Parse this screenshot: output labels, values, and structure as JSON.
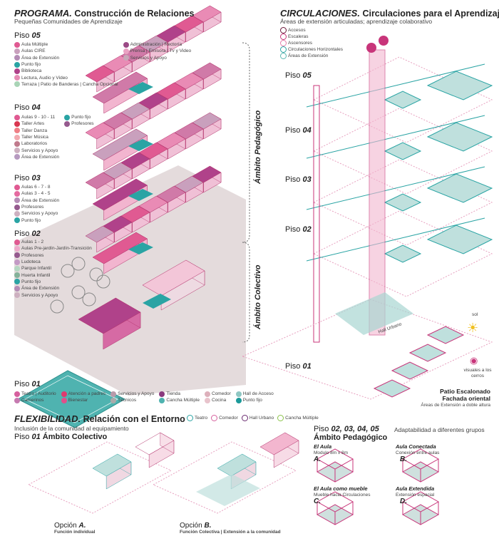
{
  "programa": {
    "title": "PROGRAMA.",
    "subtitle": "Construcción de Relaciones",
    "caption": "Pequeñas Comunidades de Aprendizaje",
    "floors": [
      {
        "label": "Piso",
        "num": "05",
        "items": [
          [
            "Aula Múltiple",
            "#e05a92"
          ],
          [
            "Aulas CIRE",
            "#c9a0bd"
          ],
          [
            "Área de Extensión",
            "#b48cb5"
          ],
          [
            "Punto fijo",
            "#2aa4a4"
          ],
          [
            "Biblioteca",
            "#b0428a"
          ],
          [
            "Lectura, Audio y Video",
            "#e68db5"
          ],
          [
            "Terraza | Patio de Banderas | Cancha Opcional",
            "#a9d4b6"
          ],
          [
            "Administración | Rectoría",
            "#9b4a86"
          ],
          [
            "Prensa | Emisora | Tv y Video",
            "#eaa2c3"
          ],
          [
            "Servicios y Apoyo",
            "#c7a8b8"
          ]
        ]
      },
      {
        "label": "Piso",
        "num": "04",
        "items": [
          [
            "Aulas 9 - 10 - 11",
            "#e05a92"
          ],
          [
            "Taller Artes",
            "#d9364f"
          ],
          [
            "Taller Danza",
            "#ef7f86"
          ],
          [
            "Taller Música",
            "#f2aab0"
          ],
          [
            "Laboratorios",
            "#c07a8c"
          ],
          [
            "Servicios y Apoyo",
            "#cdb0c0"
          ],
          [
            "Área de Extensión",
            "#b79ac0"
          ],
          [
            "Punto fijo",
            "#2aa4a4"
          ],
          [
            "Profesores",
            "#955a8e"
          ]
        ]
      },
      {
        "label": "Piso",
        "num": "03",
        "items": [
          [
            "Aulas 6 - 7 - 8",
            "#e05a92"
          ],
          [
            "Aulas 3 - 4 - 5",
            "#e56aa0"
          ],
          [
            "Área de Extensión",
            "#b48cb5"
          ],
          [
            "Profesores",
            "#955a8e"
          ],
          [
            "Servicios y Apoyo",
            "#cdb0c0"
          ],
          [
            "Punto fijo",
            "#2aa4a4"
          ]
        ]
      },
      {
        "label": "Piso",
        "num": "02",
        "items": [
          [
            "Aulas 1 - 2",
            "#e05a92"
          ],
          [
            "Aulas Pre-jardín-Jardín-Transición",
            "#eeaacb"
          ],
          [
            "Profesores",
            "#955a8e"
          ],
          [
            "Ludoteca",
            "#c39ac5"
          ],
          [
            "Parque Infantil",
            "#b5d8c2"
          ],
          [
            "Huerta Infantil",
            "#86b29a"
          ],
          [
            "Punto fijo",
            "#2aa4a4"
          ],
          [
            "Área de Extensión",
            "#b48cb5"
          ],
          [
            "Servicios y Apoyo",
            "#cdb0c0"
          ]
        ]
      },
      {
        "label": "Piso",
        "num": "01",
        "items": [
          [
            "Teatro | Auditorio",
            "#d6609e"
          ],
          [
            "Camerinos",
            "#c67ab0"
          ],
          [
            "Atención a padres",
            "#e0386f"
          ],
          [
            "Bienestar",
            "#e0508a"
          ],
          [
            "Servicios y Apoyo",
            "#b89aaa"
          ],
          [
            "Técnicos",
            "#aaa"
          ],
          [
            "Tienda",
            "#8a3a7e"
          ],
          [
            "Cancha Múltiple",
            "#4fb3b0"
          ],
          [
            "Comedor",
            "#ddb0bb"
          ],
          [
            "Cocina",
            "#e8c4cc"
          ],
          [
            "Hall de Acceso",
            "#8fc7c3"
          ],
          [
            "Punto fijo",
            "#1b9a9a"
          ]
        ]
      }
    ],
    "ambito_pedagogico": "Ámbito Pedagógico",
    "ambito_colectivo": "Ámbito Colectivo"
  },
  "circulaciones": {
    "title": "CIRCULACIONES.",
    "subtitle": "Circulaciones para el Aprendizaje",
    "caption": "Áreas de extensión articuladas; aprendizaje colaborativo",
    "legend": [
      [
        "Accesos",
        "#6a1538"
      ],
      [
        "Escaleras",
        "#c8357a"
      ],
      [
        "Ascensores",
        "#e47aa7"
      ],
      [
        "Circulaciones Horizontales",
        "#2aa4a4"
      ],
      [
        "Áreas de Extensión",
        "#5bb7b1"
      ]
    ],
    "floors": [
      "05",
      "04",
      "03",
      "02",
      "01"
    ],
    "floor_label": "Piso",
    "hall": "Hall Urbano",
    "sun": "sol",
    "eye": "visuales a los cerros",
    "patio_title1": "Patio Escalonado",
    "patio_title2": "Fachada oriental",
    "patio_caption": "Áreas de Extensión a doble altura"
  },
  "flexibilidad": {
    "title": "FLEXIBILIDAD.",
    "subtitle": "Relación con el Entorno",
    "caption": "Inclusión de la comunidad al equipamiento",
    "piso": "Piso",
    "piso_num": "01",
    "ambito": "Ámbito Colectivo",
    "legend": [
      [
        "Teatro",
        "#2aa4a4"
      ],
      [
        "Comedor",
        "#d6609e"
      ],
      [
        "Hall Urbano",
        "#6a2a70"
      ],
      [
        "Cancha Múltiple",
        "#8bc34a"
      ]
    ],
    "opcion_a": "Opción",
    "opcion_a_letter": "A.",
    "opcion_a_caption": "Función individual",
    "opcion_b": "Opción",
    "opcion_b_letter": "B.",
    "opcion_b_caption": "Función Colectiva | Extensión a la comunidad"
  },
  "aula": {
    "piso": "Piso",
    "piso_nums": "02, 03, 04, 05",
    "ambito": "Ámbito Pedagógico",
    "adapt": "Adaptabilidad a diferentes grupos",
    "cards": [
      {
        "title": "El Aula",
        "caption": "Modulo 8m x 8m",
        "letter": "A."
      },
      {
        "title": "Aula Conectada",
        "caption": "Conexión entre aulas",
        "letter": "B."
      },
      {
        "title": "El Aula como mueble",
        "caption": "Mueble hacia Circulaciones",
        "letter": "C."
      },
      {
        "title": "Aula Extendida",
        "caption": "Extensión espacial",
        "letter": "D."
      }
    ]
  }
}
